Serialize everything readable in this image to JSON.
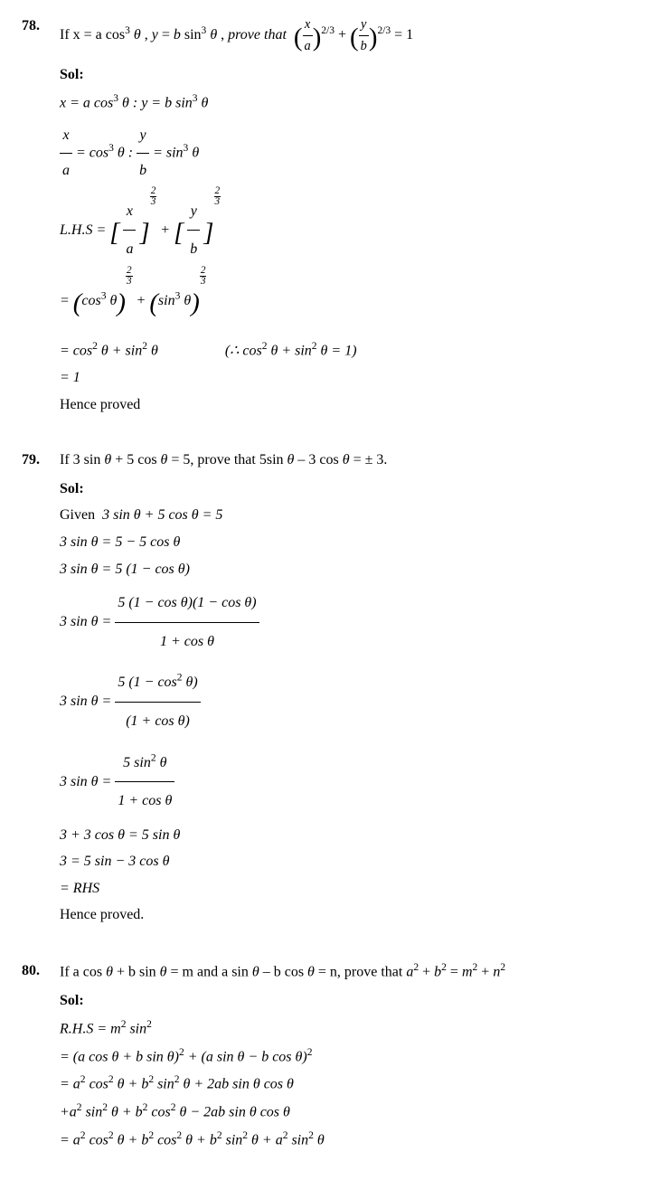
{
  "problems": [
    {
      "number": "78.",
      "question_html": "If x = a cos<sup>3</sup> <i>θ</i> , <i>y</i> = <i>b</i> sin<sup>3</sup> <i>θ</i> , <i>prove that</i>&nbsp; <span class='lb'>(</span><span class='qfrac'><span class='n'><i>x</i></span><span class='d'><i>a</i></span></span><span class='lb'>)</span><sup>2/3</sup> + <span class='lb'>(</span><span class='qfrac'><span class='n'><i>y</i></span><span class='d'><i>b</i></span></span><span class='lb'>)</span><sup>2/3</sup> = 1",
      "sol_label": "Sol:",
      "steps": [
        {
          "cls": "step",
          "html": "x = a cos<sup>3</sup> θ : y = b sin<sup>3</sup> θ"
        },
        {
          "cls": "step tall",
          "html": "<span class='frac'><span class='n'>x</span><span class='d'>a</span></span> = cos<sup>3</sup> θ : <span class='frac'><span class='n'>y</span><span class='d'>b</span></span> = sin<sup>3</sup> θ"
        },
        {
          "cls": "step taller",
          "html": "L.H.S = <span class='lb'>[</span> <span class='frac'><span class='n'>x</span><span class='d'>a</span></span> <span class='lb'>]</span><span class='supfrac'><span class='n'>2</span><span class='d'>3</span></span> + <span class='lb'>[</span> <span class='frac'><span class='n'>y</span><span class='d'>b</span></span> <span class='lb'>]</span><span class='supfrac'><span class='n'>2</span><span class='d'>3</span></span>"
        },
        {
          "cls": "step tall",
          "html": "= <span class='lb'>(</span>cos<sup>3</sup> θ<span class='lb'>)</span><span class='supfrac'><span class='n'>2</span><span class='d'>3</span></span> + <span class='lb'>(</span>sin<sup>3</sup> θ<span class='lb'>)</span><span class='supfrac'><span class='n'>2</span><span class='d'>3</span></span>"
        },
        {
          "cls": "step",
          "html": "= cos<sup>2</sup> θ + sin<sup>2</sup> θ <span class='paren-note'>(∴ cos<sup>2</sup> θ + sin<sup>2</sup> θ = 1)</span>"
        },
        {
          "cls": "step",
          "html": "= 1"
        },
        {
          "cls": "step",
          "html": "<span class='upright'>Hence proved</span>"
        }
      ]
    },
    {
      "number": "79.",
      "question_html": "If 3 sin <i>θ</i> + 5 cos <i>θ</i> = 5, prove that 5sin <i>θ</i> – 3 cos <i>θ</i> = ± 3.",
      "sol_label": "Sol:",
      "steps": [
        {
          "cls": "step",
          "html": "<span class='upright'>Given</span>&nbsp; 3 sin θ + 5 cos θ = 5"
        },
        {
          "cls": "step",
          "html": "3 sin θ = 5 − 5 cos θ"
        },
        {
          "cls": "step",
          "html": "3 sin θ = 5 (1 − cos θ)"
        },
        {
          "cls": "step taller",
          "html": "3 sin θ = <span class='frac'><span class='n'>5 (1 − cos θ)(1 − cos θ)</span><span class='d'>1 + cos θ</span></span>"
        },
        {
          "cls": "step taller",
          "html": "3 sin θ = <span class='frac'><span class='n'>5 (1 − cos<sup>2</sup> θ)</span><span class='d'>(1 + cos θ)</span></span>"
        },
        {
          "cls": "step taller",
          "html": "3 sin θ = <span class='frac'><span class='n'>5 sin<sup>2</sup> θ</span><span class='d'>1 + cos θ</span></span>"
        },
        {
          "cls": "step",
          "html": "3 + 3 cos θ = 5 sin θ"
        },
        {
          "cls": "step",
          "html": "3 = 5 sin − 3 cos θ"
        },
        {
          "cls": "step",
          "html": "= RHS"
        },
        {
          "cls": "step",
          "html": "<span class='upright'>Hence proved.</span>"
        }
      ]
    },
    {
      "number": "80.",
      "question_html": "If a cos <i>θ</i> + b sin <i>θ</i> = m and a sin <i>θ</i> – b cos <i>θ</i> = n, prove that <i>a</i><sup>2</sup> + <i>b</i><sup>2</sup> = <i>m</i><sup>2</sup> + <i>n</i><sup>2</sup>",
      "sol_label": "Sol:",
      "steps": [
        {
          "cls": "step",
          "html": "R.H.S = m<sup>2</sup> sin<sup>2</sup>"
        },
        {
          "cls": "step",
          "html": "= (a cos θ + b sin θ)<sup>2</sup> + (a sin θ − b cos θ)<sup>2</sup>"
        },
        {
          "cls": "step",
          "html": "= a<sup>2</sup> cos<sup>2</sup> θ + b<sup>2</sup> sin<sup>2</sup> θ + 2ab sin θ cos θ"
        },
        {
          "cls": "step",
          "html": "+a<sup>2</sup> sin<sup>2</sup> θ + b<sup>2</sup> cos<sup>2</sup> θ − 2ab sin θ cos θ"
        },
        {
          "cls": "step",
          "html": "= a<sup>2</sup> cos<sup>2</sup> θ + b<sup>2</sup> cos<sup>2</sup> θ + b<sup>2</sup> sin<sup>2</sup> θ + a<sup>2</sup> sin<sup>2</sup> θ"
        }
      ]
    }
  ]
}
